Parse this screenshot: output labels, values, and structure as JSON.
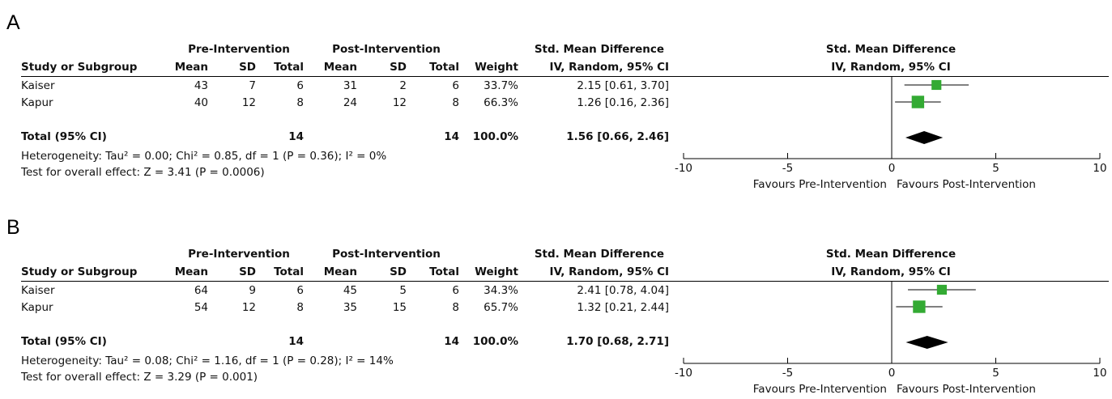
{
  "chart_data": [
    {
      "type": "forest",
      "panel_label": "A",
      "group_headers": {
        "experimental": "Pre-Intervention",
        "control": "Post-Intervention",
        "effect_table": "Std. Mean Difference",
        "effect_plot": "Std. Mean Difference"
      },
      "column_headers": {
        "study": "Study or Subgroup",
        "mean": "Mean",
        "sd": "SD",
        "total": "Total",
        "weight": "Weight",
        "ci": "IV, Random, 95% CI",
        "ci_plot": "IV, Random, 95% CI"
      },
      "studies": [
        {
          "name": "Kaiser",
          "pre_mean": "43",
          "pre_sd": "7",
          "pre_total": "6",
          "post_mean": "31",
          "post_sd": "2",
          "post_total": "6",
          "weight": "33.7%",
          "ci_text": "2.15 [0.61, 3.70]",
          "est": 2.15,
          "lo": 0.61,
          "hi": 3.7,
          "w": 33.7
        },
        {
          "name": "Kapur",
          "pre_mean": "40",
          "pre_sd": "12",
          "pre_total": "8",
          "post_mean": "24",
          "post_sd": "12",
          "post_total": "8",
          "weight": "66.3%",
          "ci_text": "1.26 [0.16, 2.36]",
          "est": 1.26,
          "lo": 0.16,
          "hi": 2.36,
          "w": 66.3
        }
      ],
      "total": {
        "label": "Total (95% CI)",
        "pre_total": "14",
        "post_total": "14",
        "weight": "100.0%",
        "ci_text": "1.56 [0.66, 2.46]",
        "est": 1.56,
        "lo": 0.66,
        "hi": 2.46
      },
      "heterogeneity": "Heterogeneity: Tau² = 0.00; Chi² = 0.85, df = 1 (P = 0.36); I² = 0%",
      "overall_effect": "Test for overall effect: Z = 3.41 (P = 0.0006)",
      "xlim": [
        -10,
        10
      ],
      "ticks": [
        -10,
        -5,
        0,
        5,
        10
      ],
      "tick_labels": [
        "-10",
        "-5",
        "0",
        "5",
        "10"
      ],
      "favours_left": "Favours Pre-Intervention",
      "favours_right": "Favours Post-Intervention",
      "marker_color": "#33aa33"
    },
    {
      "type": "forest",
      "panel_label": "B",
      "group_headers": {
        "experimental": "Pre-Intervention",
        "control": "Post-Intervention",
        "effect_table": "Std. Mean Difference",
        "effect_plot": "Std. Mean Difference"
      },
      "column_headers": {
        "study": "Study or Subgroup",
        "mean": "Mean",
        "sd": "SD",
        "total": "Total",
        "weight": "Weight",
        "ci": "IV, Random, 95% CI",
        "ci_plot": "IV, Random, 95% CI"
      },
      "studies": [
        {
          "name": "Kaiser",
          "pre_mean": "64",
          "pre_sd": "9",
          "pre_total": "6",
          "post_mean": "45",
          "post_sd": "5",
          "post_total": "6",
          "weight": "34.3%",
          "ci_text": "2.41 [0.78, 4.04]",
          "est": 2.41,
          "lo": 0.78,
          "hi": 4.04,
          "w": 34.3
        },
        {
          "name": "Kapur",
          "pre_mean": "54",
          "pre_sd": "12",
          "pre_total": "8",
          "post_mean": "35",
          "post_sd": "15",
          "post_total": "8",
          "weight": "65.7%",
          "ci_text": "1.32 [0.21, 2.44]",
          "est": 1.32,
          "lo": 0.21,
          "hi": 2.44,
          "w": 65.7
        }
      ],
      "total": {
        "label": "Total (95% CI)",
        "pre_total": "14",
        "post_total": "14",
        "weight": "100.0%",
        "ci_text": "1.70 [0.68, 2.71]",
        "est": 1.7,
        "lo": 0.68,
        "hi": 2.71
      },
      "heterogeneity": "Heterogeneity: Tau² = 0.08; Chi² = 1.16, df = 1 (P = 0.28); I² = 14%",
      "overall_effect": "Test for overall effect: Z = 3.29 (P = 0.001)",
      "xlim": [
        -10,
        10
      ],
      "ticks": [
        -10,
        -5,
        0,
        5,
        10
      ],
      "tick_labels": [
        "-10",
        "-5",
        "0",
        "5",
        "10"
      ],
      "favours_left": "Favours Pre-Intervention",
      "favours_right": "Favours Post-Intervention",
      "marker_color": "#33aa33"
    }
  ]
}
